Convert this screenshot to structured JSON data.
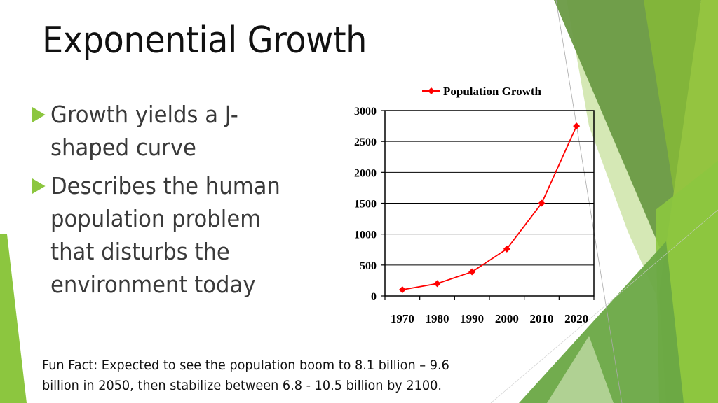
{
  "slide": {
    "title": "Exponential Growth",
    "bullets": [
      {
        "text": "Growth yields a   J-shaped curve"
      },
      {
        "text": "Describes the human population problem that disturbs the environment today"
      }
    ],
    "fun_fact": {
      "line1": "Fun Fact: Expected to see the population boom to 8.1 billion – 9.6",
      "line2": "billion in 2050, then stabilize between 6.8 - 10.5 billion by 2100."
    },
    "colors": {
      "accent": "#8cc63f",
      "dark_green": "#6a9a45",
      "light_green": "#d5e8b5",
      "series": "#ff0000"
    }
  },
  "chart_data": {
    "type": "line",
    "title": "",
    "legend": [
      "Population Growth"
    ],
    "legend_position": "top",
    "categories": [
      "1970",
      "1980",
      "1990",
      "2000",
      "2010",
      "2020"
    ],
    "series": [
      {
        "name": "Population Growth",
        "values": [
          100,
          200,
          390,
          760,
          1500,
          2750
        ],
        "color": "#ff0000",
        "marker": "diamond"
      }
    ],
    "xlabel": "",
    "ylabel": "",
    "ylim": [
      0,
      3000
    ],
    "yticks": [
      "0",
      "500",
      "1000",
      "1500",
      "2000",
      "2500",
      "3000"
    ],
    "grid": true
  }
}
